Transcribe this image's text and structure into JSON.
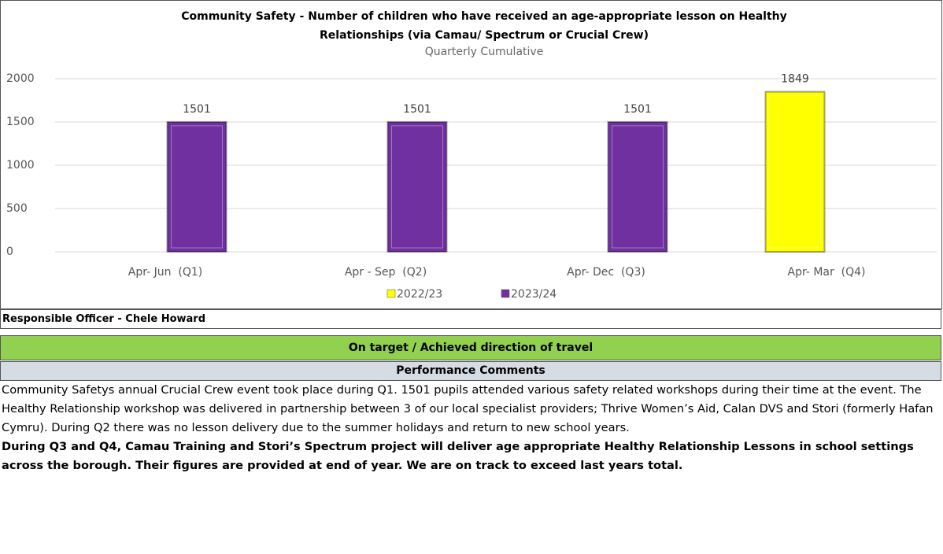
{
  "chart_data": {
    "type": "bar",
    "title": "Community Safety - Number of children who have received an age-appropriate lesson on Healthy",
    "title_line2": "Relationships (via Camau/ Spectrum or Crucial Crew)",
    "subtitle": "Quarterly Cumulative",
    "categories": [
      "Apr- Jun  (Q1)",
      "Apr - Sep  (Q2)",
      "Apr- Dec  (Q3)",
      "Apr- Mar  (Q4)"
    ],
    "series": [
      {
        "name": "2022/23",
        "color": "#ffff00",
        "values": [
          null,
          null,
          null,
          1849
        ]
      },
      {
        "name": "2023/24",
        "color": "#7030a0",
        "values": [
          1501,
          1501,
          1501,
          null
        ]
      }
    ],
    "ylim": [
      0,
      2000
    ],
    "yticks": [
      0,
      500,
      1000,
      1500,
      2000
    ],
    "grid": true,
    "legend": "bottom"
  },
  "officer": "Responsible Officer - Chele Howard",
  "status": "On target / Achieved direction of travel",
  "comments_heading": "Performance Comments",
  "comments": [
    "Community Safetys annual Crucial Crew event took place during Q1. 1501 pupils attended various safety related workshops during their time at the event. The Healthy Relationship workshop was delivered in partnership between 3 of our local specialist providers; Thrive Women’s Aid, Calan DVS and Stori (formerly Hafan Cymru). During Q2 there was no lesson delivery due to the summer holidays and return to new school years.",
    "During Q3 and Q4, Camau Training and Stori’s Spectrum project will deliver age appropriate Healthy Relationship Lessons in school settings across the borough. Their figures are provided at end of year. We are on track to exceed last years total."
  ]
}
